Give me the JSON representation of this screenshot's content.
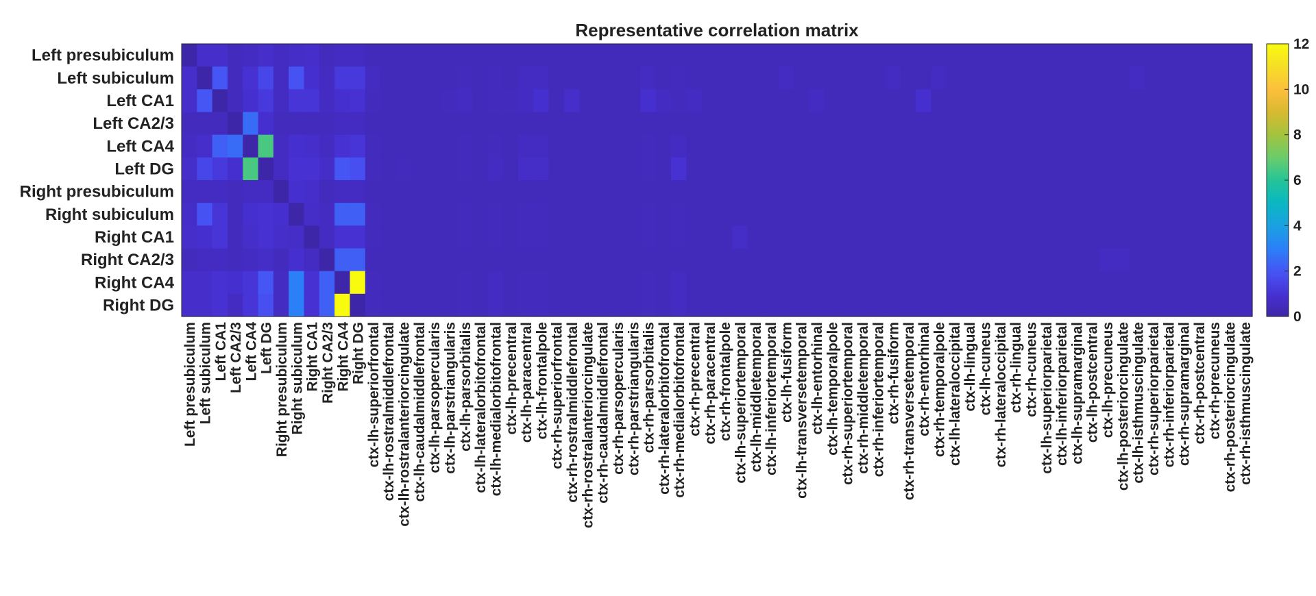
{
  "chart_data": {
    "type": "heatmap",
    "title": "Representative correlation matrix",
    "row_labels": [
      "Left presubiculum",
      "Left subiculum",
      "Left CA1",
      "Left CA2/3",
      "Left CA4",
      "Left DG",
      "Right presubiculum",
      "Right subiculum",
      "Right CA1",
      "Right CA2/3",
      "Right CA4",
      "Right DG"
    ],
    "col_labels": [
      "Left presubiculum",
      "Left subiculum",
      "Left CA1",
      "Left CA2/3",
      "Left CA4",
      "Left DG",
      "Right presubiculum",
      "Right subiculum",
      "Right CA1",
      "Right CA2/3",
      "Right CA4",
      "Right DG",
      "ctx-lh-superiorfrontal",
      "ctx-lh-rostralmiddlefrontal",
      "ctx-lh-rostralanteriorcingulate",
      "ctx-lh-caudalmiddlefrontal",
      "ctx-lh-parsopercularis",
      "ctx-lh-parstriangularis",
      "ctx-lh-parsorbitalis",
      "ctx-lh-lateralorbitofrontal",
      "ctx-lh-medialorbitofrontal",
      "ctx-lh-precentral",
      "ctx-lh-paracentral",
      "ctx-lh-frontalpole",
      "ctx-rh-superiorfrontal",
      "ctx-rh-rostralmiddlefrontal",
      "ctx-rh-rostralanteriorcingulate",
      "ctx-rh-caudalmiddlefrontal",
      "ctx-rh-parsopercularis",
      "ctx-rh-parstriangularis",
      "ctx-rh-parsorbitalis",
      "ctx-rh-lateralorbitofrontal",
      "ctx-rh-medialorbitofrontal",
      "ctx-rh-precentral",
      "ctx-rh-paracentral",
      "ctx-rh-frontalpole",
      "ctx-lh-superiortemporal",
      "ctx-lh-middletemporal",
      "ctx-lh-inferiortemporal",
      "ctx-lh-fusiform",
      "ctx-lh-transversetemporal",
      "ctx-lh-entorhinal",
      "ctx-lh-temporalpole",
      "ctx-rh-superiortemporal",
      "ctx-rh-middletemporal",
      "ctx-rh-inferiortemporal",
      "ctx-rh-fusiform",
      "ctx-rh-transversetemporal",
      "ctx-rh-entorhinal",
      "ctx-rh-temporalpole",
      "ctx-lh-lateraloccipital",
      "ctx-lh-lingual",
      "ctx-lh-cuneus",
      "ctx-rh-lateraloccipital",
      "ctx-rh-lingual",
      "ctx-rh-cuneus",
      "ctx-lh-superiorparietal",
      "ctx-lh-inferiorparietal",
      "ctx-lh-supramarginal",
      "ctx-lh-postcentral",
      "ctx-lh-precuneus",
      "ctx-lh-posteriorcingulate",
      "ctx-lh-isthmuscingulate",
      "ctx-rh-superiorparietal",
      "ctx-rh-inferiorparietal",
      "ctx-rh-supramarginal",
      "ctx-rh-postcentral",
      "ctx-rh-precuneus",
      "ctx-rh-posteriorcingulate",
      "ctx-rh-isthmuscingulate"
    ],
    "colorbar": {
      "min": 0,
      "max": 12,
      "ticks": [
        0,
        2,
        4,
        6,
        8,
        10,
        12
      ],
      "colormap": "parula"
    },
    "values": [
      [
        0,
        0.8,
        0.8,
        0.5,
        0.6,
        0.8,
        0.6,
        0.7,
        0.8,
        0.5,
        0.6,
        0.6,
        0.4,
        0.4,
        0.4,
        0.4,
        0.4,
        0.4,
        0.4,
        0.4,
        0.4,
        0.4,
        0.4,
        0.4,
        0.4,
        0.4,
        0.4,
        0.4,
        0.4,
        0.4,
        0.4,
        0.4,
        0.4,
        0.4,
        0.4,
        0.4,
        0.4,
        0.4,
        0.4,
        0.4,
        0.4,
        0.4,
        0.4,
        0.4,
        0.4,
        0.4,
        0.4,
        0.4,
        0.4,
        0.4,
        0.4,
        0.4,
        0.4,
        0.4,
        0.4,
        0.4,
        0.4,
        0.4,
        0.4,
        0.4,
        0.4,
        0.4,
        0.4,
        0.4,
        0.4,
        0.4,
        0.4,
        0.4,
        0.4,
        0.4
      ],
      [
        0.8,
        0,
        2.0,
        0.5,
        1.0,
        1.6,
        0.6,
        1.9,
        0.9,
        0.6,
        1.2,
        1.2,
        0.6,
        0.4,
        0.4,
        0.4,
        0.4,
        0.4,
        0.5,
        0.4,
        0.5,
        0.4,
        0.6,
        0.6,
        0.4,
        0.4,
        0.4,
        0.4,
        0.4,
        0.4,
        0.6,
        0.4,
        0.5,
        0.4,
        0.4,
        0.4,
        0.4,
        0.4,
        0.4,
        0.6,
        0.4,
        0.4,
        0.4,
        0.4,
        0.4,
        0.4,
        0.6,
        0.4,
        0.4,
        0.6,
        0.4,
        0.4,
        0.4,
        0.4,
        0.4,
        0.4,
        0.4,
        0.4,
        0.4,
        0.4,
        0.4,
        0.4,
        0.6,
        0.4,
        0.4,
        0.4,
        0.4,
        0.4,
        0.4,
        0.4
      ],
      [
        0.8,
        2.0,
        0,
        0.5,
        0.9,
        1.2,
        0.6,
        1.1,
        1.1,
        0.6,
        0.9,
        1.0,
        0.5,
        0.4,
        0.4,
        0.4,
        0.4,
        0.5,
        0.6,
        0.4,
        0.5,
        0.5,
        0.6,
        0.9,
        0.4,
        0.8,
        0.4,
        0.4,
        0.4,
        0.4,
        0.9,
        0.6,
        0.5,
        0.6,
        0.4,
        0.4,
        0.4,
        0.4,
        0.4,
        0.4,
        0.4,
        0.6,
        0.4,
        0.4,
        0.4,
        0.4,
        0.4,
        0.4,
        0.9,
        0.4,
        0.4,
        0.4,
        0.4,
        0.4,
        0.4,
        0.4,
        0.4,
        0.4,
        0.4,
        0.4,
        0.4,
        0.4,
        0.4,
        0.4,
        0.4,
        0.4,
        0.4,
        0.4,
        0.4,
        0.4
      ],
      [
        0.5,
        0.5,
        0.5,
        0,
        2.5,
        0.9,
        0.5,
        0.5,
        0.5,
        0.5,
        0.6,
        0.6,
        0.4,
        0.4,
        0.4,
        0.4,
        0.4,
        0.4,
        0.4,
        0.4,
        0.4,
        0.4,
        0.4,
        0.4,
        0.4,
        0.4,
        0.4,
        0.4,
        0.4,
        0.4,
        0.4,
        0.4,
        0.4,
        0.4,
        0.4,
        0.4,
        0.4,
        0.4,
        0.4,
        0.4,
        0.4,
        0.4,
        0.4,
        0.4,
        0.4,
        0.4,
        0.4,
        0.4,
        0.4,
        0.4,
        0.4,
        0.4,
        0.4,
        0.4,
        0.4,
        0.4,
        0.4,
        0.4,
        0.4,
        0.4,
        0.4,
        0.4,
        0.4,
        0.4,
        0.4,
        0.4,
        0.4,
        0.4,
        0.4,
        0.4
      ],
      [
        0.6,
        0.8,
        2.2,
        2.5,
        0,
        6.5,
        0.6,
        0.9,
        0.8,
        0.6,
        1.0,
        1.1,
        0.5,
        0.4,
        0.4,
        0.4,
        0.4,
        0.4,
        0.5,
        0.4,
        0.5,
        0.4,
        0.6,
        0.6,
        0.4,
        0.4,
        0.4,
        0.4,
        0.4,
        0.4,
        0.5,
        0.4,
        0.6,
        0.4,
        0.4,
        0.4,
        0.4,
        0.4,
        0.4,
        0.4,
        0.4,
        0.4,
        0.4,
        0.4,
        0.4,
        0.4,
        0.4,
        0.4,
        0.4,
        0.4,
        0.4,
        0.4,
        0.4,
        0.4,
        0.4,
        0.4,
        0.4,
        0.4,
        0.4,
        0.4,
        0.4,
        0.4,
        0.4,
        0.4,
        0.4,
        0.4,
        0.4,
        0.4,
        0.4,
        0.4
      ],
      [
        0.8,
        1.6,
        1.2,
        0.9,
        6.5,
        0,
        0.6,
        1.0,
        1.0,
        0.7,
        2.0,
        1.8,
        0.5,
        0.4,
        0.5,
        0.4,
        0.4,
        0.4,
        0.5,
        0.4,
        0.6,
        0.4,
        0.7,
        0.7,
        0.4,
        0.4,
        0.4,
        0.4,
        0.4,
        0.4,
        0.5,
        0.4,
        1.0,
        0.4,
        0.4,
        0.4,
        0.4,
        0.4,
        0.4,
        0.4,
        0.4,
        0.4,
        0.4,
        0.4,
        0.4,
        0.4,
        0.4,
        0.4,
        0.4,
        0.4,
        0.4,
        0.4,
        0.4,
        0.4,
        0.4,
        0.4,
        0.4,
        0.4,
        0.4,
        0.4,
        0.4,
        0.4,
        0.4,
        0.4,
        0.4,
        0.4,
        0.4,
        0.4,
        0.4,
        0.4
      ],
      [
        0.6,
        0.6,
        0.6,
        0.5,
        0.6,
        0.6,
        0,
        0.9,
        0.8,
        0.5,
        0.6,
        0.6,
        0.4,
        0.4,
        0.4,
        0.4,
        0.4,
        0.4,
        0.4,
        0.4,
        0.4,
        0.4,
        0.4,
        0.4,
        0.4,
        0.4,
        0.4,
        0.4,
        0.4,
        0.4,
        0.4,
        0.4,
        0.4,
        0.4,
        0.4,
        0.4,
        0.4,
        0.4,
        0.4,
        0.4,
        0.4,
        0.4,
        0.4,
        0.4,
        0.4,
        0.4,
        0.4,
        0.4,
        0.4,
        0.4,
        0.4,
        0.4,
        0.4,
        0.4,
        0.4,
        0.4,
        0.4,
        0.4,
        0.4,
        0.4,
        0.4,
        0.4,
        0.4,
        0.4,
        0.4,
        0.4,
        0.4,
        0.4,
        0.4,
        0.4
      ],
      [
        0.7,
        1.9,
        1.1,
        0.5,
        0.9,
        1.0,
        0.9,
        0,
        0.7,
        0.6,
        2.2,
        2.2,
        0.5,
        0.4,
        0.4,
        0.4,
        0.4,
        0.4,
        0.5,
        0.4,
        0.5,
        0.4,
        0.5,
        0.5,
        0.4,
        0.4,
        0.4,
        0.4,
        0.4,
        0.4,
        0.5,
        0.4,
        0.5,
        0.4,
        0.4,
        0.4,
        0.4,
        0.4,
        0.4,
        0.4,
        0.4,
        0.4,
        0.4,
        0.4,
        0.4,
        0.4,
        0.4,
        0.4,
        0.4,
        0.4,
        0.4,
        0.4,
        0.4,
        0.4,
        0.4,
        0.4,
        0.4,
        0.4,
        0.4,
        0.4,
        0.4,
        0.4,
        0.4,
        0.4,
        0.4,
        0.4,
        0.4,
        0.4,
        0.4,
        0.4
      ],
      [
        0.8,
        0.9,
        1.1,
        0.5,
        0.8,
        1.0,
        0.8,
        0.7,
        0,
        0.6,
        1.0,
        1.0,
        0.5,
        0.4,
        0.4,
        0.4,
        0.4,
        0.4,
        0.5,
        0.4,
        0.5,
        0.4,
        0.5,
        0.5,
        0.4,
        0.4,
        0.4,
        0.4,
        0.4,
        0.4,
        0.5,
        0.4,
        0.5,
        0.4,
        0.4,
        0.4,
        0.7,
        0.4,
        0.4,
        0.4,
        0.4,
        0.4,
        0.4,
        0.4,
        0.4,
        0.4,
        0.4,
        0.4,
        0.4,
        0.4,
        0.4,
        0.4,
        0.4,
        0.4,
        0.4,
        0.4,
        0.4,
        0.4,
        0.4,
        0.4,
        0.4,
        0.4,
        0.4,
        0.4,
        0.4,
        0.4,
        0.4,
        0.4,
        0.4,
        0.4
      ],
      [
        0.5,
        0.6,
        0.6,
        0.5,
        0.6,
        0.7,
        0.5,
        0.9,
        0.6,
        0,
        2.2,
        2.2,
        0.4,
        0.4,
        0.4,
        0.4,
        0.4,
        0.4,
        0.4,
        0.4,
        0.4,
        0.4,
        0.4,
        0.4,
        0.4,
        0.4,
        0.4,
        0.4,
        0.4,
        0.4,
        0.4,
        0.4,
        0.4,
        0.4,
        0.4,
        0.4,
        0.4,
        0.4,
        0.4,
        0.4,
        0.4,
        0.4,
        0.4,
        0.4,
        0.4,
        0.4,
        0.4,
        0.4,
        0.4,
        0.4,
        0.4,
        0.4,
        0.4,
        0.4,
        0.4,
        0.4,
        0.4,
        0.4,
        0.4,
        0.4,
        0.6,
        0.6,
        0.4,
        0.4,
        0.4,
        0.4,
        0.4,
        0.4,
        0.4,
        0.4
      ],
      [
        0.8,
        0.8,
        1.0,
        0.9,
        1.1,
        2.0,
        0.6,
        3.0,
        1.0,
        2.2,
        0,
        12.0,
        0.5,
        0.4,
        0.4,
        0.4,
        0.4,
        0.4,
        0.5,
        0.4,
        0.6,
        0.4,
        0.5,
        0.5,
        0.4,
        0.4,
        0.4,
        0.4,
        0.4,
        0.4,
        0.5,
        0.4,
        0.6,
        0.4,
        0.4,
        0.4,
        0.4,
        0.4,
        0.4,
        0.4,
        0.4,
        0.4,
        0.4,
        0.4,
        0.4,
        0.4,
        0.4,
        0.4,
        0.4,
        0.4,
        0.4,
        0.4,
        0.4,
        0.4,
        0.4,
        0.4,
        0.4,
        0.4,
        0.4,
        0.4,
        0.4,
        0.4,
        0.4,
        0.4,
        0.4,
        0.4,
        0.4,
        0.4,
        0.4,
        0.4
      ],
      [
        0.8,
        0.8,
        1.0,
        0.6,
        1.1,
        1.8,
        0.6,
        3.0,
        1.0,
        2.2,
        12.0,
        0,
        0.5,
        0.4,
        0.4,
        0.4,
        0.4,
        0.4,
        0.5,
        0.4,
        0.6,
        0.4,
        0.5,
        0.5,
        0.4,
        0.4,
        0.4,
        0.4,
        0.4,
        0.4,
        0.5,
        0.4,
        0.6,
        0.4,
        0.4,
        0.4,
        0.4,
        0.4,
        0.4,
        0.4,
        0.4,
        0.4,
        0.4,
        0.4,
        0.4,
        0.4,
        0.4,
        0.4,
        0.4,
        0.4,
        0.4,
        0.4,
        0.4,
        0.4,
        0.4,
        0.4,
        0.4,
        0.4,
        0.4,
        0.4,
        0.4,
        0.4,
        0.4,
        0.4,
        0.4,
        0.4,
        0.4,
        0.4,
        0.4,
        0.4
      ]
    ]
  }
}
